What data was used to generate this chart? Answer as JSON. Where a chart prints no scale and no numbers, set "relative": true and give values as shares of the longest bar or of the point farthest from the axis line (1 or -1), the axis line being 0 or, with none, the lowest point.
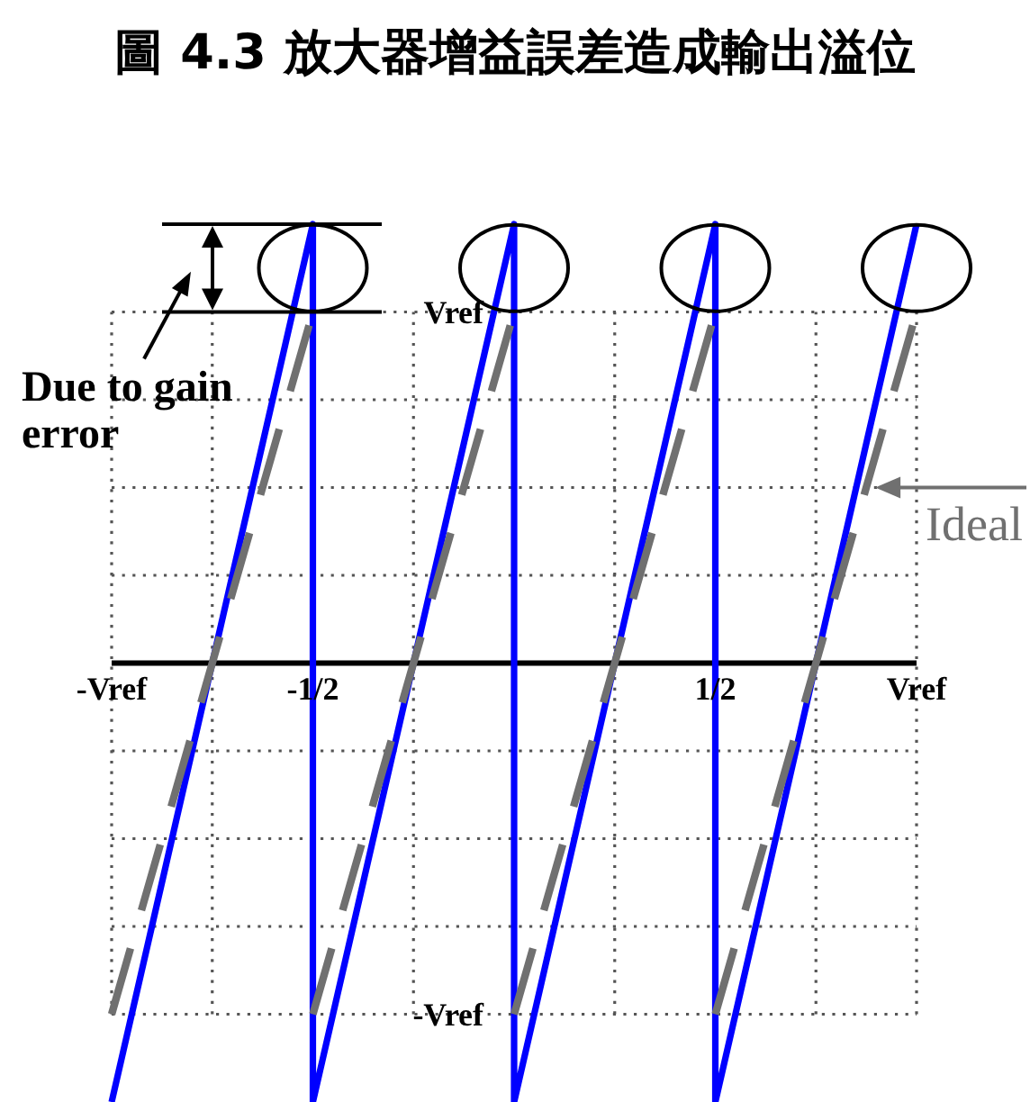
{
  "chart_data": {
    "type": "line",
    "title": "圖 4.3 放大器增益誤差造成輸出溢位",
    "relative": true,
    "xlim": [
      -1,
      1
    ],
    "xticks": [
      {
        "value": -1,
        "label": "-Vref"
      },
      {
        "value": -0.75,
        "label": null
      },
      {
        "value": -0.5,
        "label": "-1/2"
      },
      {
        "value": -0.25,
        "label": null
      },
      {
        "value": 0.25,
        "label": null
      },
      {
        "value": 0.5,
        "label": "1/2"
      },
      {
        "value": 0.75,
        "label": null
      },
      {
        "value": 1,
        "label": "Vref"
      }
    ],
    "grid": "x",
    "series": [
      {
        "color": "#0000ff",
        "line_style": "solid",
        "x": [
          -1,
          -0.5,
          -0.5,
          0,
          0,
          0.5,
          0.5,
          1
        ],
        "values": [
          -1,
          1,
          -1,
          1,
          -1,
          1,
          -1,
          1
        ]
      },
      {
        "name": "Ideal",
        "color": "#707070",
        "line_style": "dashed",
        "x": [
          -1,
          -0.5,
          null,
          -0.5,
          0,
          null,
          0,
          0.5,
          null,
          0.5,
          1
        ],
        "values": [
          -0.8,
          0.8,
          null,
          -0.8,
          0.8,
          null,
          -0.8,
          0.8,
          null,
          -0.8,
          0.8
        ]
      }
    ],
    "ref_lines": [
      {
        "axis": "y",
        "value": 0.8,
        "label": "Vref",
        "line_style": "dotted"
      },
      {
        "axis": "y",
        "value": 0.6,
        "line_style": "dotted"
      },
      {
        "axis": "y",
        "value": 0.4,
        "line_style": "dotted"
      },
      {
        "axis": "y",
        "value": 0.2,
        "line_style": "dotted"
      },
      {
        "axis": "y",
        "value": -0.2,
        "line_style": "dotted"
      },
      {
        "axis": "y",
        "value": -0.4,
        "line_style": "dotted"
      },
      {
        "axis": "y",
        "value": -0.6,
        "line_style": "dotted"
      },
      {
        "axis": "y",
        "value": -0.8,
        "label": "-Vref",
        "line_style": "dotted"
      }
    ],
    "annotations": [
      "Due to gain error"
    ]
  }
}
